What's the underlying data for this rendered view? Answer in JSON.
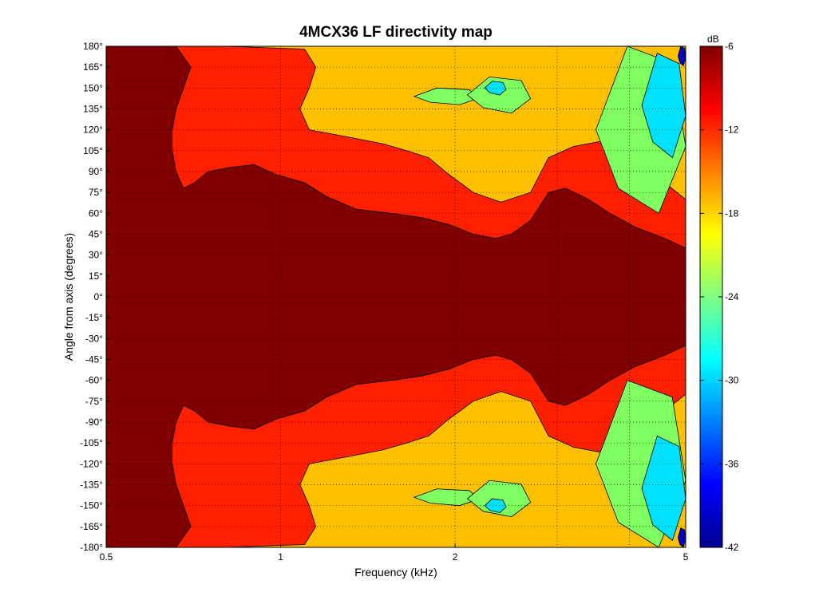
{
  "chart_data": {
    "type": "contour",
    "title": "4MCX36 LF directivity map",
    "xlabel": "Frequency (kHz)",
    "ylabel": "Angle from axis (degrees)",
    "x_scale": "log",
    "xlim": [
      0.5,
      5
    ],
    "ylim": [
      -180,
      180
    ],
    "x_ticks": [
      {
        "value": 0.5,
        "label": "0.5"
      },
      {
        "value": 1,
        "label": "1"
      },
      {
        "value": 2,
        "label": "2"
      },
      {
        "value": 5,
        "label": "5"
      }
    ],
    "y_ticks": [
      {
        "value": 180,
        "label": "180°"
      },
      {
        "value": 165,
        "label": "165°"
      },
      {
        "value": 150,
        "label": "150°"
      },
      {
        "value": 135,
        "label": "135°"
      },
      {
        "value": 120,
        "label": "120°"
      },
      {
        "value": 105,
        "label": "105°"
      },
      {
        "value": 90,
        "label": "90°"
      },
      {
        "value": 75,
        "label": "75°"
      },
      {
        "value": 60,
        "label": "60°"
      },
      {
        "value": 45,
        "label": "45°"
      },
      {
        "value": 30,
        "label": "30°"
      },
      {
        "value": 15,
        "label": "15°"
      },
      {
        "value": 0,
        "label": "0°"
      },
      {
        "value": -15,
        "label": "-15°"
      },
      {
        "value": -30,
        "label": "-30°"
      },
      {
        "value": -45,
        "label": "-45°"
      },
      {
        "value": -60,
        "label": "-60°"
      },
      {
        "value": -75,
        "label": "-75°"
      },
      {
        "value": -90,
        "label": "-90°"
      },
      {
        "value": -105,
        "label": "-105°"
      },
      {
        "value": -120,
        "label": "-120°"
      },
      {
        "value": -135,
        "label": "-135°"
      },
      {
        "value": -150,
        "label": "-150°"
      },
      {
        "value": -165,
        "label": "-165°"
      },
      {
        "value": -180,
        "label": "-180°"
      }
    ],
    "grid": true,
    "colorbar": {
      "unit": "dB",
      "range": [
        -42,
        -6
      ],
      "ticks": [
        {
          "value": -6,
          "label": "-6"
        },
        {
          "value": -12,
          "label": "-12"
        },
        {
          "value": -18,
          "label": "-18"
        },
        {
          "value": -24,
          "label": "-24"
        },
        {
          "value": -30,
          "label": "-30"
        },
        {
          "value": -36,
          "label": "-36"
        },
        {
          "value": -42,
          "label": "-42"
        }
      ],
      "colormap": [
        "#00008f",
        "#0000ff",
        "#0080ff",
        "#00ffff",
        "#80ff80",
        "#ffff00",
        "#ff8000",
        "#ff0000",
        "#800000"
      ]
    },
    "level_colors": {
      "above_-9": "#800000",
      "-9_to_-15": "#ff2000",
      "-15_to_-21": "#ffc000",
      "-21_to_-27": "#80ff60",
      "-27_to_-33": "#00e0ff",
      "-33_to_-39": "#0070ff",
      "below_-39": "#0000c0"
    },
    "contours": [
      {
        "level": "-9_to_-15",
        "upper_boundary": [
          [
            0.5,
            180
          ],
          [
            0.66,
            180
          ],
          [
            0.7,
            165
          ],
          [
            0.68,
            150
          ],
          [
            0.66,
            135
          ],
          [
            0.65,
            120
          ],
          [
            0.65,
            105
          ],
          [
            0.66,
            90
          ],
          [
            0.68,
            78
          ],
          [
            0.71,
            82
          ],
          [
            0.75,
            90
          ],
          [
            0.82,
            93
          ],
          [
            0.9,
            95
          ],
          [
            0.98,
            88
          ],
          [
            1.1,
            82
          ],
          [
            1.2,
            72
          ],
          [
            1.35,
            63
          ],
          [
            1.55,
            60
          ],
          [
            1.75,
            57
          ],
          [
            1.95,
            52
          ],
          [
            2.15,
            45
          ],
          [
            2.35,
            42
          ],
          [
            2.5,
            45
          ],
          [
            2.7,
            55
          ],
          [
            2.9,
            75
          ],
          [
            3.1,
            78
          ],
          [
            3.4,
            70
          ],
          [
            3.7,
            60
          ],
          [
            4.1,
            50
          ],
          [
            4.6,
            42
          ],
          [
            5,
            35
          ]
        ]
      },
      {
        "level": "-15_to_-21",
        "upper_boundary": [
          [
            0.8,
            180
          ],
          [
            1.1,
            178
          ],
          [
            1.15,
            165
          ],
          [
            1.12,
            150
          ],
          [
            1.08,
            135
          ],
          [
            1.12,
            120
          ],
          [
            1.3,
            115
          ],
          [
            1.5,
            110
          ],
          [
            1.65,
            105
          ],
          [
            1.8,
            100
          ],
          [
            1.95,
            88
          ],
          [
            2.15,
            75
          ],
          [
            2.4,
            68
          ],
          [
            2.7,
            75
          ],
          [
            2.9,
            100
          ],
          [
            3.2,
            108
          ],
          [
            3.6,
            112
          ],
          [
            4.1,
            95
          ],
          [
            4.6,
            82
          ],
          [
            5,
            70
          ]
        ]
      },
      {
        "level": "-21_to_-27",
        "regions": [
          {
            "freq_range": [
              1.7,
              2.2
            ],
            "angle_range": [
              138,
              150
            ]
          },
          {
            "freq_range": [
              2.1,
              2.7
            ],
            "angle_range": [
              132,
              158
            ]
          },
          {
            "freq_range": [
              3.5,
              5
            ],
            "angle_range": [
              60,
              180
            ]
          }
        ]
      },
      {
        "level": "-27_to_-33",
        "regions": [
          {
            "freq_range": [
              2.25,
              2.45
            ],
            "angle_range": [
              145,
              155
            ]
          },
          {
            "freq_range": [
              4.2,
              5
            ],
            "angle_range": [
              100,
              175
            ]
          }
        ]
      },
      {
        "level": "below_-39",
        "regions": [
          {
            "freq_range": [
              4.85,
              5
            ],
            "angle_range": [
              166,
              180
            ]
          }
        ]
      }
    ],
    "symmetry": "mirror about 0°"
  }
}
